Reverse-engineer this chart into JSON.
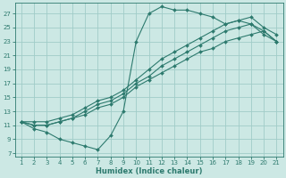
{
  "title": "",
  "xlabel": "Humidex (Indice chaleur)",
  "ylabel": "",
  "bg_color": "#cce8e4",
  "grid_color": "#a0ccc8",
  "line_color": "#2d7a6e",
  "xlim": [
    0.5,
    21.5
  ],
  "ylim": [
    6.5,
    28.5
  ],
  "xticks": [
    1,
    2,
    3,
    4,
    5,
    6,
    7,
    8,
    9,
    10,
    11,
    12,
    13,
    14,
    15,
    16,
    17,
    18,
    19,
    20,
    21
  ],
  "yticks": [
    7,
    9,
    11,
    13,
    15,
    17,
    19,
    21,
    23,
    25,
    27
  ],
  "lines": [
    {
      "x": [
        1,
        2,
        3,
        4,
        5,
        6,
        7,
        8,
        9,
        10,
        11,
        12,
        13,
        14,
        15,
        16,
        17,
        18,
        19,
        20,
        21
      ],
      "y": [
        11.5,
        10.5,
        10.0,
        9.0,
        8.5,
        8.0,
        7.5,
        9.5,
        13.0,
        23.0,
        27.0,
        28.0,
        27.5,
        27.5,
        27.0,
        26.5,
        25.5,
        26.0,
        25.5,
        24.0,
        23.0
      ]
    },
    {
      "x": [
        1,
        2,
        3,
        4,
        5,
        6,
        7,
        8,
        9,
        10,
        11,
        12,
        13,
        14,
        15,
        16,
        17,
        18,
        19,
        20,
        21
      ],
      "y": [
        11.5,
        11.0,
        11.0,
        11.5,
        12.0,
        12.5,
        13.5,
        14.0,
        15.0,
        16.5,
        17.5,
        18.5,
        19.5,
        20.5,
        21.5,
        22.0,
        23.0,
        23.5,
        24.0,
        24.5,
        23.0
      ]
    },
    {
      "x": [
        1,
        2,
        3,
        4,
        5,
        6,
        7,
        8,
        9,
        10,
        11,
        12,
        13,
        14,
        15,
        16,
        17,
        18,
        19,
        20,
        21
      ],
      "y": [
        11.5,
        11.0,
        11.0,
        11.5,
        12.0,
        13.0,
        14.0,
        14.5,
        15.5,
        17.0,
        18.0,
        19.5,
        20.5,
        21.5,
        22.5,
        23.5,
        24.5,
        25.0,
        25.5,
        24.5,
        23.0
      ]
    },
    {
      "x": [
        1,
        2,
        3,
        4,
        5,
        6,
        7,
        8,
        9,
        10,
        11,
        12,
        13,
        14,
        15,
        16,
        17,
        18,
        19,
        20,
        21
      ],
      "y": [
        11.5,
        11.5,
        11.5,
        12.0,
        12.5,
        13.5,
        14.5,
        15.0,
        16.0,
        17.5,
        19.0,
        20.5,
        21.5,
        22.5,
        23.5,
        24.5,
        25.5,
        26.0,
        26.5,
        25.0,
        24.0
      ]
    }
  ],
  "xlabel_fontsize": 6,
  "tick_fontsize": 5,
  "marker_size": 2,
  "linewidth": 0.8
}
